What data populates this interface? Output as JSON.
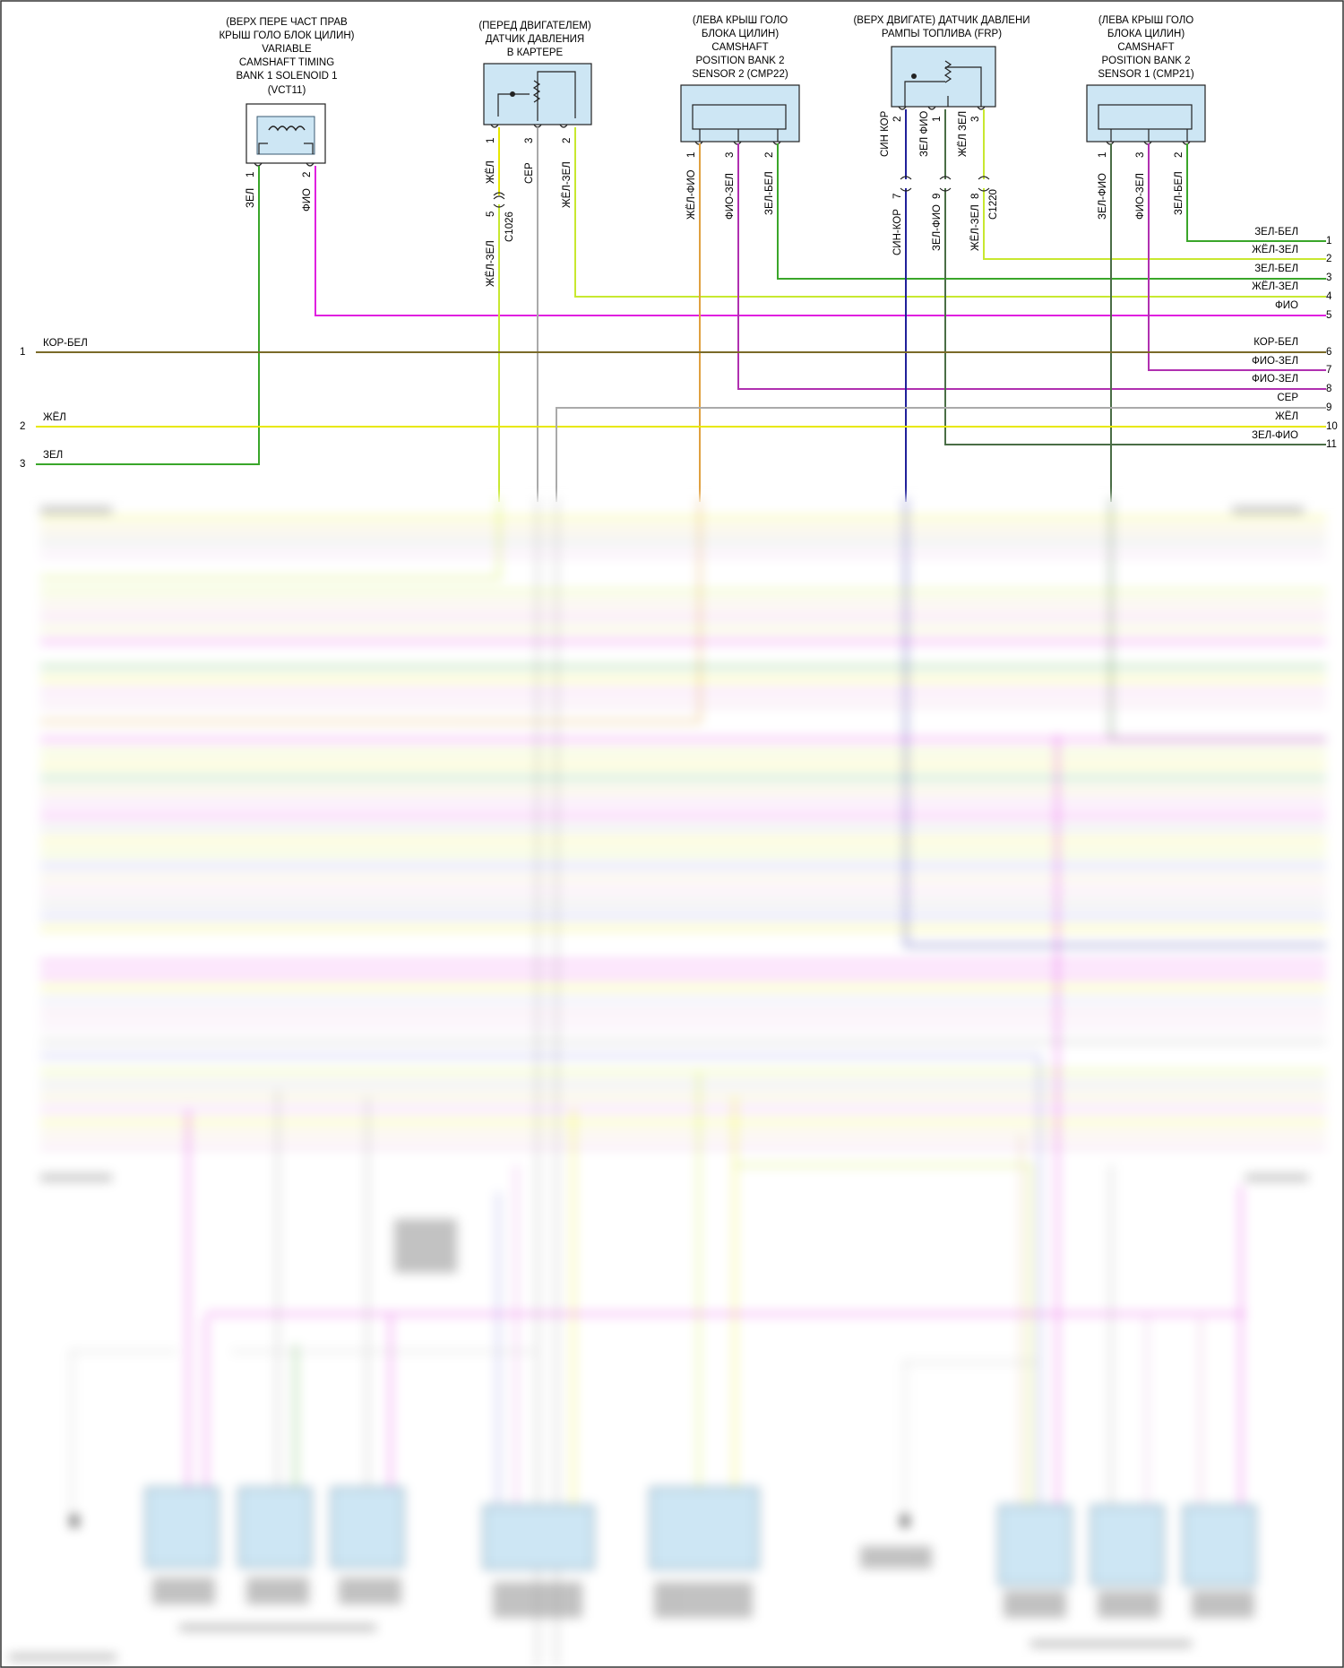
{
  "components": [
    {
      "id": "vct11",
      "title": [
        "(ВЕРХ ПЕРЕ ЧАСТ ПРАВ",
        "КРЫШ ГОЛО БЛОК ЦИЛИН)",
        "VARIABLE",
        "CAMSHAFT TIMING",
        "BANK 1 SOLENOID 1",
        "(VCT11)"
      ],
      "pins": [
        {
          "num": "1",
          "color": "ЗЕЛ"
        },
        {
          "num": "2",
          "color": "ФИО"
        }
      ]
    },
    {
      "id": "crankcase-pressure",
      "title": [
        "(ПЕРЕД ДВИГАТЕЛЕМ)",
        "ДАТЧИК ДАВЛЕНИЯ",
        "В КАРТЕРЕ"
      ],
      "pins": [
        {
          "num": "1",
          "color": "ЖЁЛ"
        },
        {
          "num": "3",
          "color": "СЕР"
        },
        {
          "num": "2",
          "color": "ЖЁЛ-ЗЕЛ"
        }
      ],
      "connector": {
        "name": "C1026",
        "pin": "5",
        "wire": "ЖЁЛ-ЗЕЛ"
      }
    },
    {
      "id": "cmp22",
      "title": [
        "(ЛЕВА КРЫШ ГОЛО",
        "БЛОКА ЦИЛИН)",
        "CAMSHAFT",
        "POSITION BANK 2",
        "SENSOR 2 (CMP22)"
      ],
      "pins": [
        {
          "num": "1",
          "color": "ЖЁЛ-ФИО"
        },
        {
          "num": "3",
          "color": "ФИО-ЗЕЛ"
        },
        {
          "num": "2",
          "color": "ЗЕЛ-БЕЛ"
        }
      ]
    },
    {
      "id": "frp",
      "title": [
        "(ВЕРХ ДВИГАТЕ) ДАТЧИК ДАВЛЕНИ",
        "РАМПЫ ТОПЛИВА (FRP)"
      ],
      "pins": [
        {
          "num": "2",
          "color": "СИН КОР"
        },
        {
          "num": "1",
          "color": "ЗЕЛ ФИО"
        },
        {
          "num": "3",
          "color": "ЖЁЛ ЗЕЛ"
        }
      ],
      "connector": {
        "name": "C1220",
        "pins": [
          {
            "num": "7",
            "wire": "СИН-КОР"
          },
          {
            "num": "9",
            "wire": "ЗЕЛ-ФИО"
          },
          {
            "num": "8",
            "wire": "ЖЁЛ-ЗЕЛ"
          }
        ]
      }
    },
    {
      "id": "cmp21",
      "title": [
        "(ЛЕВА КРЫШ ГОЛО",
        "БЛОКА ЦИЛИН)",
        "CAMSHAFT",
        "POSITION BANK 2",
        "SENSOR 1 (CMP21)"
      ],
      "pins": [
        {
          "num": "1",
          "color": "ЗЕЛ-ФИО"
        },
        {
          "num": "3",
          "color": "ФИО-ЗЕЛ"
        },
        {
          "num": "2",
          "color": "ЗЕЛ-БЕЛ"
        }
      ]
    }
  ],
  "left_lines": [
    {
      "num": "1",
      "label": "КОР-БЕЛ",
      "color": "#7a6a28"
    },
    {
      "num": "2",
      "label": "ЖЁЛ",
      "color": "#e8e800"
    },
    {
      "num": "3",
      "label": "ЗЕЛ",
      "color": "#3aa62a"
    }
  ],
  "right_lines": [
    {
      "num": "1",
      "label": "ЗЕЛ-БЕЛ",
      "color": "#3aa62a"
    },
    {
      "num": "2",
      "label": "ЖЁЛ-ЗЕЛ",
      "color": "#c8e830"
    },
    {
      "num": "3",
      "label": "ЗЕЛ-БЕЛ",
      "color": "#3aa62a"
    },
    {
      "num": "4",
      "label": "ЖЁЛ-ЗЕЛ",
      "color": "#c8e830"
    },
    {
      "num": "5",
      "label": "ФИО",
      "color": "#e020e0"
    },
    {
      "num": "6",
      "label": "КОР-БЕЛ",
      "color": "#7a6a28"
    },
    {
      "num": "7",
      "label": "ФИО-ЗЕЛ",
      "color": "#b030b0"
    },
    {
      "num": "8",
      "label": "ФИО-ЗЕЛ",
      "color": "#b030b0"
    },
    {
      "num": "9",
      "label": "СЕР",
      "color": "#aaaaaa"
    },
    {
      "num": "10",
      "label": "ЖЁЛ",
      "color": "#e8e800"
    },
    {
      "num": "11",
      "label": "ЗЕЛ-ФИО",
      "color": "#4a6e46"
    }
  ],
  "wire_colors": {
    "green": "#3aa62a",
    "magenta": "#e020e0",
    "yellow": "#e8e800",
    "yellow_green": "#c8e830",
    "grey": "#aaaaaa",
    "orange": "#e0a040",
    "blue": "#20209a",
    "olive": "#4a6e46",
    "brown": "#7a6a28",
    "purple": "#b030b0"
  }
}
